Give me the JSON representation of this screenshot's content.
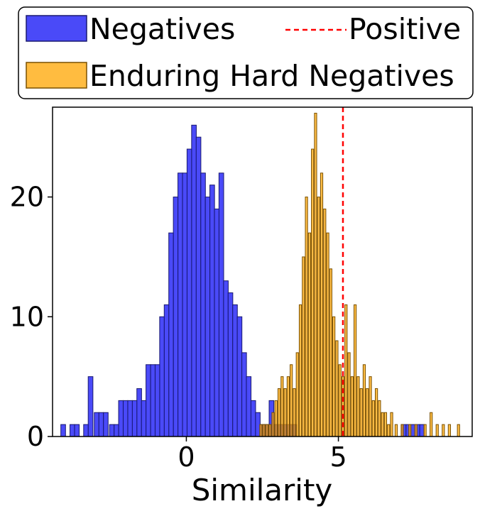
{
  "chart_data": {
    "type": "histogram",
    "xlabel": "Similarity",
    "ylabel": "",
    "xlim": [
      -4.4,
      9.4
    ],
    "ylim": [
      0,
      27.5
    ],
    "x_ticks": [
      0,
      5
    ],
    "y_ticks": [
      0,
      10,
      20
    ],
    "grid": false,
    "legend": {
      "placement": "top (above plot)",
      "entries": [
        {
          "label": "Negatives",
          "kind": "patch"
        },
        {
          "label": "Positive",
          "kind": "dashed-line"
        },
        {
          "label": "Enduring Hard Negatives",
          "kind": "patch"
        }
      ]
    },
    "series": [
      {
        "name": "Negatives",
        "color": "#2a2af7",
        "edge_color": "#1a1a70",
        "bin_width": 0.155,
        "bins": [
          [
            -4.05,
            1
          ],
          [
            -3.75,
            1
          ],
          [
            -3.6,
            1
          ],
          [
            -3.3,
            1
          ],
          [
            -3.15,
            5
          ],
          [
            -2.95,
            2
          ],
          [
            -2.8,
            2
          ],
          [
            -2.65,
            2
          ],
          [
            -2.45,
            1
          ],
          [
            -2.3,
            1
          ],
          [
            -2.15,
            3
          ],
          [
            -2.0,
            3
          ],
          [
            -1.85,
            3
          ],
          [
            -1.7,
            3
          ],
          [
            -1.55,
            4
          ],
          [
            -1.4,
            3
          ],
          [
            -1.25,
            6
          ],
          [
            -1.1,
            6
          ],
          [
            -0.95,
            6
          ],
          [
            -0.8,
            10
          ],
          [
            -0.65,
            11
          ],
          [
            -0.5,
            17
          ],
          [
            -0.35,
            20
          ],
          [
            -0.2,
            22
          ],
          [
            -0.05,
            22
          ],
          [
            0.1,
            24
          ],
          [
            0.25,
            26
          ],
          [
            0.4,
            25
          ],
          [
            0.55,
            22
          ],
          [
            0.7,
            20
          ],
          [
            0.85,
            21
          ],
          [
            1.0,
            19
          ],
          [
            1.15,
            22
          ],
          [
            1.3,
            13
          ],
          [
            1.45,
            12
          ],
          [
            1.6,
            11
          ],
          [
            1.75,
            10
          ],
          [
            1.9,
            7
          ],
          [
            2.05,
            5
          ],
          [
            2.2,
            3
          ],
          [
            2.35,
            2
          ],
          [
            2.5,
            1
          ],
          [
            2.65,
            1
          ],
          [
            2.8,
            3
          ],
          [
            2.95,
            1
          ],
          [
            3.1,
            1
          ],
          [
            3.25,
            1
          ],
          [
            3.4,
            1
          ],
          [
            3.55,
            1
          ],
          [
            7.15,
            1
          ],
          [
            7.3,
            1
          ],
          [
            7.45,
            1
          ],
          [
            7.6,
            1
          ],
          [
            7.75,
            1
          ]
        ]
      },
      {
        "name": "Enduring Hard Negatives",
        "color": "#ffa500",
        "edge_color": "#7a5000",
        "bin_width": 0.075,
        "bins": [
          [
            2.45,
            1
          ],
          [
            2.55,
            1
          ],
          [
            2.65,
            1
          ],
          [
            2.75,
            1
          ],
          [
            2.85,
            2
          ],
          [
            2.95,
            3
          ],
          [
            3.05,
            4
          ],
          [
            3.15,
            5
          ],
          [
            3.25,
            4
          ],
          [
            3.35,
            5
          ],
          [
            3.45,
            6
          ],
          [
            3.55,
            4
          ],
          [
            3.65,
            7
          ],
          [
            3.75,
            11
          ],
          [
            3.85,
            15
          ],
          [
            3.95,
            20
          ],
          [
            4.05,
            17
          ],
          [
            4.15,
            24
          ],
          [
            4.25,
            27
          ],
          [
            4.35,
            20
          ],
          [
            4.45,
            22
          ],
          [
            4.55,
            19
          ],
          [
            4.65,
            17
          ],
          [
            4.75,
            14
          ],
          [
            4.85,
            10
          ],
          [
            4.95,
            8
          ],
          [
            5.05,
            6
          ],
          [
            5.15,
            5
          ],
          [
            5.25,
            11
          ],
          [
            5.35,
            7
          ],
          [
            5.45,
            5
          ],
          [
            5.55,
            11
          ],
          [
            5.65,
            5
          ],
          [
            5.75,
            4
          ],
          [
            5.85,
            6
          ],
          [
            5.95,
            4
          ],
          [
            6.05,
            5
          ],
          [
            6.15,
            3
          ],
          [
            6.25,
            4
          ],
          [
            6.35,
            3
          ],
          [
            6.45,
            2
          ],
          [
            6.55,
            2
          ],
          [
            6.65,
            1
          ],
          [
            6.75,
            2
          ],
          [
            6.9,
            1
          ],
          [
            7.1,
            1
          ],
          [
            7.35,
            1
          ],
          [
            7.55,
            1
          ],
          [
            7.85,
            1
          ],
          [
            8.05,
            2
          ],
          [
            8.25,
            1
          ],
          [
            8.45,
            1
          ],
          [
            8.65,
            1
          ],
          [
            8.95,
            1
          ]
        ]
      },
      {
        "name": "Positive",
        "type": "vline",
        "x": 5.15,
        "color": "#ff0000",
        "style": "dashed"
      }
    ]
  }
}
